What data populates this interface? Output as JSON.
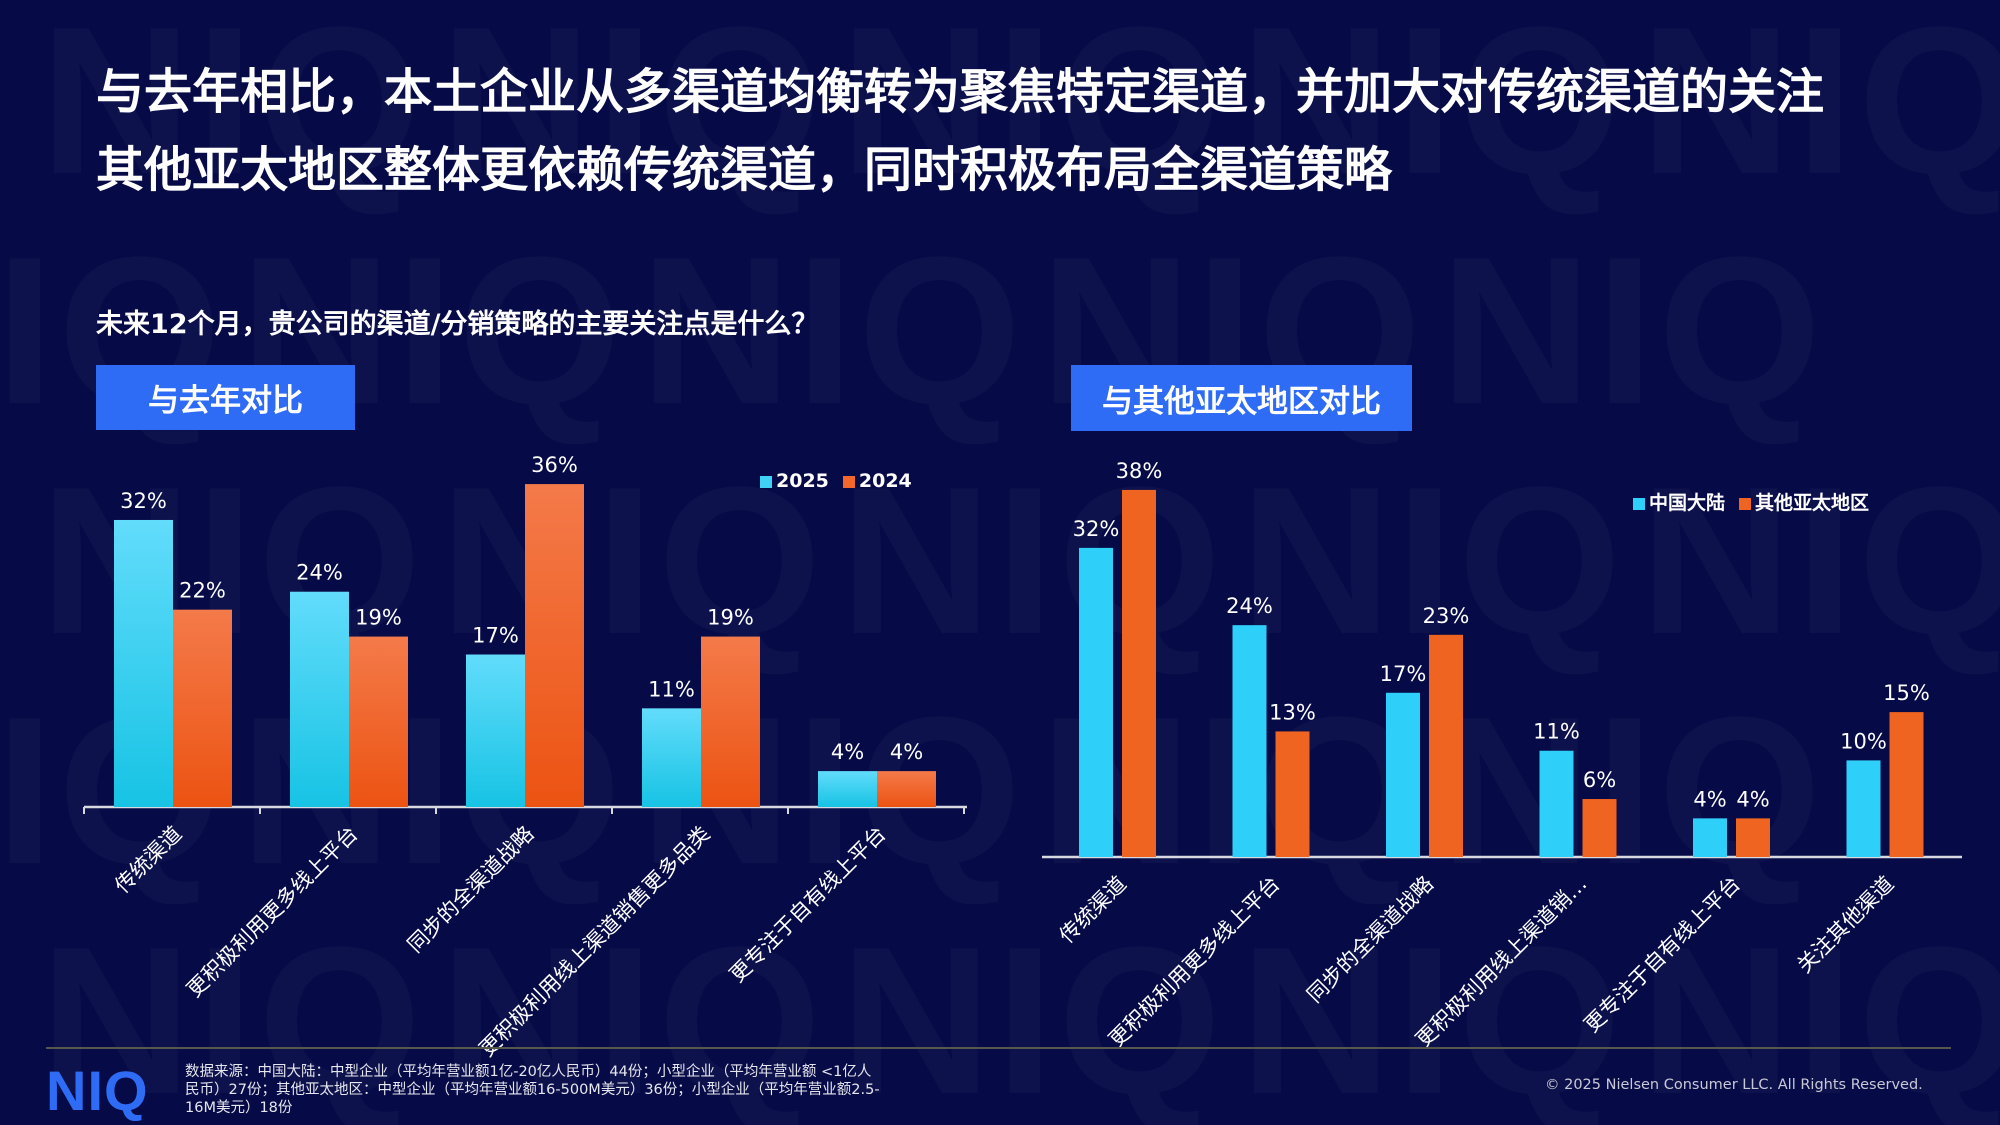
{
  "header": {
    "title_line1": "与去年相比，本土企业从多渠道均衡转为聚焦特定渠道，并加大对传统渠道的关注",
    "title_line2": "其他亚太地区整体更依赖传统渠道，同时积极布局全渠道策略"
  },
  "question": "未来12个月，贵公司的渠道/分销策略的主要关注点是什么？",
  "panels": {
    "left_tag": "与去年对比",
    "right_tag": "与其他亚太地区对比"
  },
  "chart_data": [
    {
      "type": "bar",
      "title": "",
      "categories": [
        "传统渠道",
        "更积极利用更多线上平台",
        "同步的全渠道战略",
        "更积极利用线上渠道销售更多品类",
        "更专注于自有线上平台"
      ],
      "series": [
        {
          "name": "2025",
          "values": [
            32,
            24,
            17,
            11,
            4
          ],
          "labels": [
            "32%",
            "24%",
            "17%",
            "11%",
            "4%"
          ],
          "color": "#3fd2f5"
        },
        {
          "name": "2024",
          "values": [
            22,
            19,
            36,
            19,
            4
          ],
          "labels": [
            "22%",
            "19%",
            "36%",
            "19%",
            "4%"
          ],
          "color": "#f2682a"
        }
      ],
      "ylim": [
        0,
        36
      ],
      "legend": "top-right",
      "grid": false
    },
    {
      "type": "bar",
      "title": "",
      "categories": [
        "传统渠道",
        "更积极利用更多线上平台",
        "同步的全渠道战略",
        "更积极利用线上渠道销…",
        "更专注于自有线上平台",
        "关注其他渠道"
      ],
      "series": [
        {
          "name": "中国大陆",
          "values": [
            32,
            24,
            17,
            11,
            4,
            10
          ],
          "labels": [
            "32%",
            "24%",
            "17%",
            "11%",
            "4%",
            "10%"
          ],
          "color": "#2ed0fa"
        },
        {
          "name": "其他亚太地区",
          "values": [
            38,
            13,
            23,
            6,
            4,
            15
          ],
          "labels": [
            "38%",
            "13%",
            "23%",
            "6%",
            "4%",
            "15%"
          ],
          "color": "#ee6420"
        }
      ],
      "ylim": [
        0,
        38
      ],
      "legend": "top-right",
      "grid": false
    }
  ],
  "footer": {
    "logo": "NIQ",
    "source": "数据来源：中国大陆：中型企业（平均年营业额1亿-20亿人民币）44份；小型企业（平均年营业额 <1亿人民币）27份；其他亚太地区：中型企业（平均年营业额16-500M美元）36份；小型企业（平均年营业额2.5-16M美元）18份",
    "copyright": "© 2025 Nielsen Consumer LLC. All Rights Reserved."
  }
}
